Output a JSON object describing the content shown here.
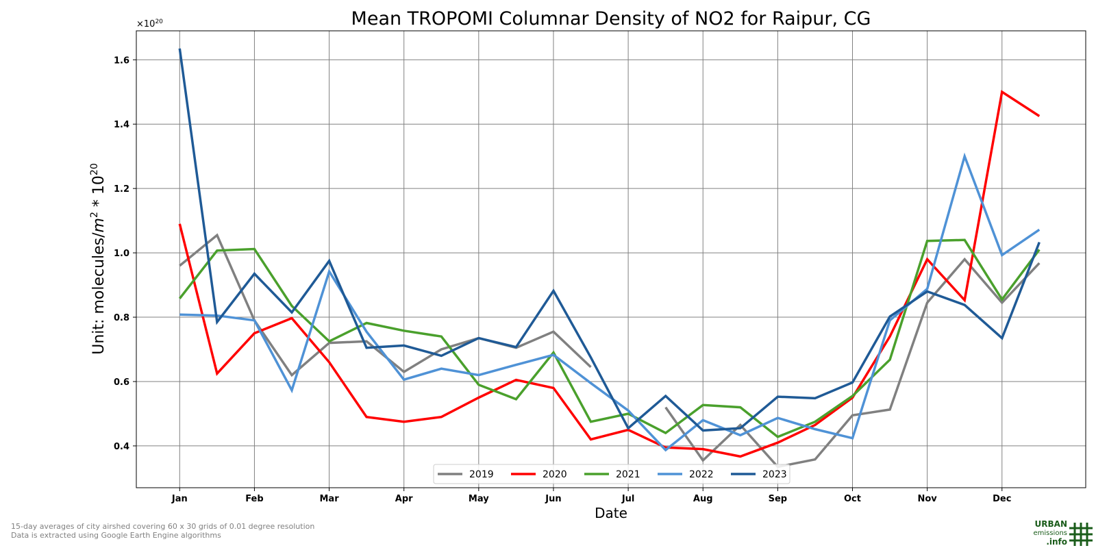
{
  "chart_data": {
    "type": "line",
    "title": "Mean TROPOMI Columnar Density of NO2 for Raipur, CG",
    "xlabel": "Date",
    "ylabel_prefix": "Unit: molecules/",
    "ylabel_m": "m",
    "ylabel_sup1": "2",
    "ylabel_mid": " * 10",
    "ylabel_sup2": "20",
    "scale_base": "×10",
    "scale_exp": "20",
    "x_tick_labels": [
      "Jan",
      "Feb",
      "Mar",
      "Apr",
      "May",
      "Jun",
      "Jul",
      "Aug",
      "Sep",
      "Oct",
      "Nov",
      "Dec"
    ],
    "y_ticks": [
      0.4,
      0.6,
      0.8,
      1.0,
      1.2,
      1.4,
      1.6
    ],
    "y_tick_labels": [
      "0.4",
      "0.6",
      "0.8",
      "1.0",
      "1.2",
      "1.4",
      "1.6"
    ],
    "xlim": [
      -0.58,
      12.12
    ],
    "ylim": [
      0.27,
      1.69
    ],
    "grid": true,
    "legend_position": "bottom-center",
    "x": [
      0,
      0.5,
      1,
      1.5,
      2,
      2.5,
      3,
      3.5,
      4,
      4.5,
      5,
      5.5,
      6,
      6.5,
      7,
      7.5,
      8,
      8.5,
      9,
      9.5,
      10,
      10.5,
      11,
      11.5
    ],
    "series": [
      {
        "name": "2019",
        "color": "#808080",
        "values": [
          0.96,
          1.055,
          0.79,
          0.62,
          0.72,
          0.725,
          0.63,
          0.7,
          0.735,
          0.705,
          0.755,
          0.645,
          null,
          0.52,
          0.355,
          0.465,
          0.335,
          0.358,
          0.495,
          0.513,
          0.845,
          0.98,
          0.845,
          0.968
        ]
      },
      {
        "name": "2020",
        "color": "#ff0000",
        "values": [
          1.09,
          0.625,
          0.75,
          0.797,
          0.66,
          0.49,
          0.475,
          0.49,
          0.55,
          0.605,
          0.58,
          0.42,
          0.45,
          0.395,
          0.39,
          0.367,
          0.41,
          0.465,
          0.55,
          0.74,
          0.98,
          0.853,
          1.5,
          1.425
        ]
      },
      {
        "name": "2021",
        "color": "#4aa02c",
        "values": [
          0.858,
          1.007,
          1.012,
          0.835,
          0.725,
          0.782,
          0.758,
          0.74,
          0.59,
          0.545,
          0.69,
          0.475,
          0.5,
          0.44,
          0.527,
          0.52,
          0.428,
          0.475,
          0.555,
          0.668,
          1.037,
          1.04,
          0.855,
          1.01
        ]
      },
      {
        "name": "2022",
        "color": "#4f92d6",
        "values": [
          0.808,
          0.805,
          0.79,
          0.573,
          0.942,
          0.755,
          0.606,
          0.64,
          0.62,
          0.652,
          0.683,
          0.595,
          0.51,
          0.387,
          0.48,
          0.433,
          0.487,
          0.452,
          0.424,
          0.79,
          0.888,
          1.3,
          0.993,
          1.072
        ]
      },
      {
        "name": "2023",
        "color": "#1f5a96",
        "values": [
          1.635,
          0.785,
          0.935,
          0.815,
          0.975,
          0.705,
          0.712,
          0.68,
          0.735,
          0.707,
          0.882,
          0.675,
          0.455,
          0.555,
          0.448,
          0.455,
          0.553,
          0.548,
          0.597,
          0.802,
          0.88,
          0.838,
          0.735,
          1.033
        ]
      }
    ]
  },
  "footnotes": {
    "line1": "15-day averages of city airshed covering 60 x 30 grids of 0.01 degree resolution",
    "line2": "Data is extracted using Google Earth Engine algorithms"
  },
  "logo": {
    "word1": "URBAN",
    "word2": "emissions",
    "word3": ".info",
    "color": "#1a5c1a"
  }
}
